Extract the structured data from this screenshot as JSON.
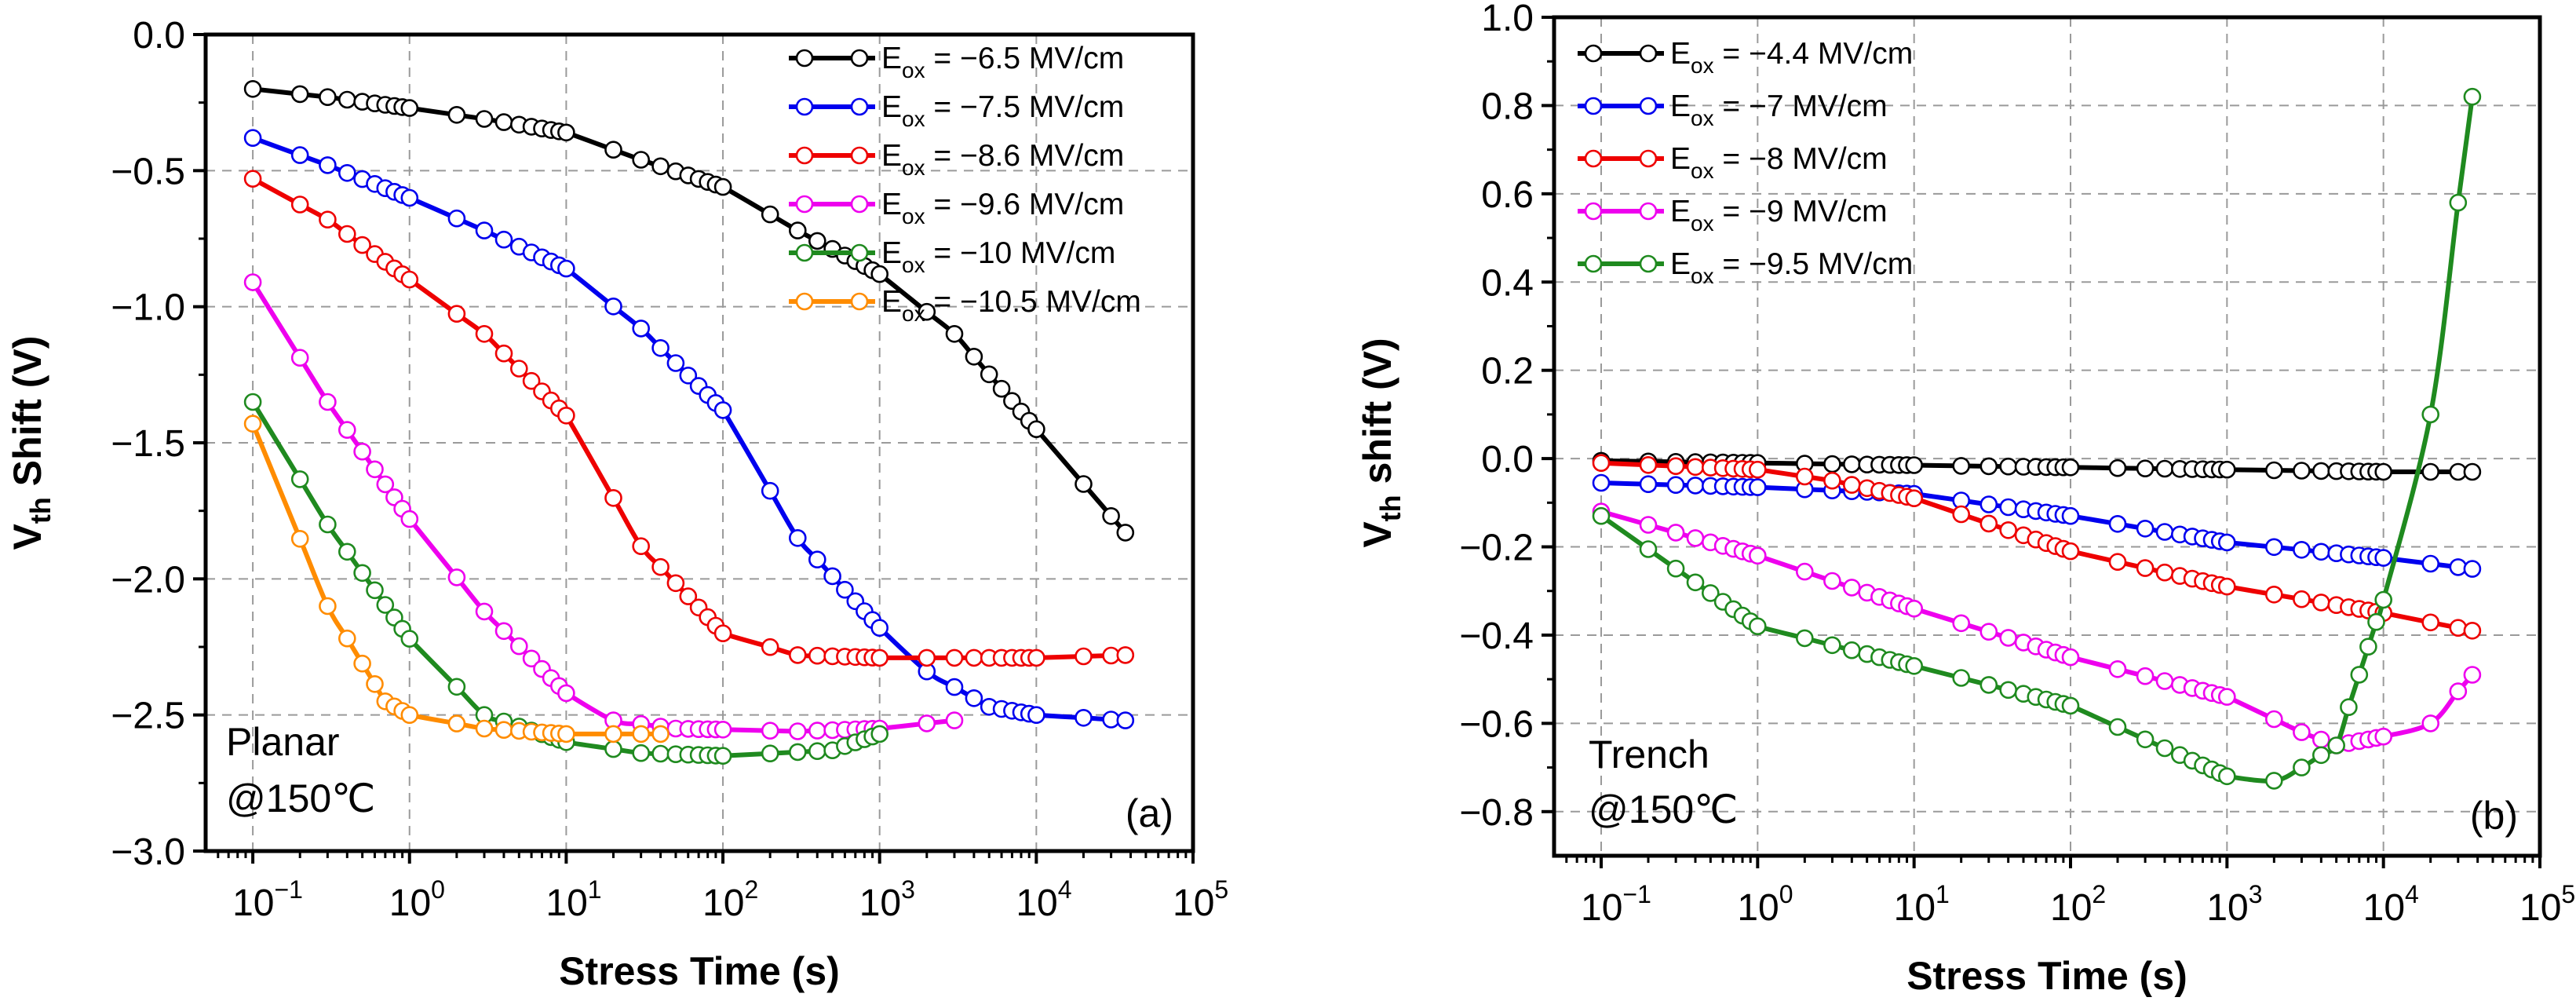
{
  "chart_data": [
    {
      "type": "line",
      "panel_label": "(a)",
      "annotation": [
        "Planar",
        "@150℃"
      ],
      "xlabel": "Stress Time (s)",
      "ylabel_main": "V",
      "ylabel_sub": "th",
      "ylabel_rest": " Shift (V)",
      "xscale": "log",
      "xlim": [
        0.05,
        100000
      ],
      "ylim": [
        -3.0,
        0.0
      ],
      "grid": true,
      "legend_position": "top-right",
      "x_ticks": [
        {
          "value": 0.1,
          "base": "10",
          "exp": "−1"
        },
        {
          "value": 1,
          "base": "10",
          "exp": "0"
        },
        {
          "value": 10,
          "base": "10",
          "exp": "1"
        },
        {
          "value": 100,
          "base": "10",
          "exp": "2"
        },
        {
          "value": 1000,
          "base": "10",
          "exp": "3"
        },
        {
          "value": 10000,
          "base": "10",
          "exp": "4"
        },
        {
          "value": 100000,
          "base": "10",
          "exp": "5"
        }
      ],
      "y_ticks": [
        {
          "value": 0.0,
          "label": "0.0"
        },
        {
          "value": -0.5,
          "label": "−0.5"
        },
        {
          "value": -1.0,
          "label": "−1.0"
        },
        {
          "value": -1.5,
          "label": "−1.5"
        },
        {
          "value": -2.0,
          "label": "−2.0"
        },
        {
          "value": -2.5,
          "label": "−2.5"
        },
        {
          "value": -3.0,
          "label": "−3.0"
        }
      ],
      "series": [
        {
          "name": "E",
          "sub": "ox",
          "value_label": " = −6.5 MV/cm",
          "color": "#000000",
          "anchors": [
            [
              0.1,
              -0.2
            ],
            [
              0.3,
              -0.23
            ],
            [
              1,
              -0.27
            ],
            [
              3,
              -0.31
            ],
            [
              10,
              -0.36
            ],
            [
              30,
              -0.46
            ],
            [
              100,
              -0.56
            ],
            [
              300,
              -0.72
            ],
            [
              1000,
              -0.88
            ],
            [
              3000,
              -1.1
            ],
            [
              10000,
              -1.45
            ],
            [
              37000,
              -1.83
            ]
          ]
        },
        {
          "name": "E",
          "sub": "ox",
          "value_label": " = −7.5 MV/cm",
          "color": "#0000ee",
          "anchors": [
            [
              0.1,
              -0.38
            ],
            [
              0.3,
              -0.48
            ],
            [
              1,
              -0.6
            ],
            [
              3,
              -0.72
            ],
            [
              10,
              -0.86
            ],
            [
              30,
              -1.08
            ],
            [
              100,
              -1.38
            ],
            [
              300,
              -1.85
            ],
            [
              1000,
              -2.18
            ],
            [
              2000,
              -2.34
            ],
            [
              5000,
              -2.47
            ],
            [
              10000,
              -2.5
            ],
            [
              37000,
              -2.52
            ]
          ]
        },
        {
          "name": "E",
          "sub": "ox",
          "value_label": " = −8.6 MV/cm",
          "color": "#ee0000",
          "anchors": [
            [
              0.1,
              -0.53
            ],
            [
              0.3,
              -0.68
            ],
            [
              1,
              -0.9
            ],
            [
              3,
              -1.1
            ],
            [
              10,
              -1.4
            ],
            [
              30,
              -1.88
            ],
            [
              100,
              -2.2
            ],
            [
              300,
              -2.28
            ],
            [
              1000,
              -2.29
            ],
            [
              10000,
              -2.29
            ],
            [
              37000,
              -2.28
            ]
          ]
        },
        {
          "name": "E",
          "sub": "ox",
          "value_label": " = −9.6 MV/cm",
          "color": "#ee00ee",
          "anchors": [
            [
              0.1,
              -0.91
            ],
            [
              0.3,
              -1.35
            ],
            [
              1,
              -1.78
            ],
            [
              3,
              -2.12
            ],
            [
              10,
              -2.42
            ],
            [
              20,
              -2.52
            ],
            [
              50,
              -2.55
            ],
            [
              300,
              -2.56
            ],
            [
              1000,
              -2.55
            ],
            [
              3000,
              -2.52
            ]
          ]
        },
        {
          "name": "E",
          "sub": "ox",
          "value_label": " = −10 MV/cm",
          "color": "#1f8a1f",
          "anchors": [
            [
              0.1,
              -1.35
            ],
            [
              0.3,
              -1.8
            ],
            [
              1,
              -2.22
            ],
            [
              3,
              -2.5
            ],
            [
              10,
              -2.6
            ],
            [
              30,
              -2.64
            ],
            [
              100,
              -2.65
            ],
            [
              500,
              -2.63
            ],
            [
              1000,
              -2.57
            ]
          ]
        },
        {
          "name": "E",
          "sub": "ox",
          "value_label": " = −10.5 MV/cm",
          "color": "#ff8c00",
          "anchors": [
            [
              0.1,
              -1.43
            ],
            [
              0.3,
              -2.1
            ],
            [
              0.7,
              -2.45
            ],
            [
              1,
              -2.5
            ],
            [
              3,
              -2.55
            ],
            [
              10,
              -2.57
            ],
            [
              40,
              -2.57
            ]
          ]
        }
      ]
    },
    {
      "type": "line",
      "panel_label": "(b)",
      "annotation": [
        "Trench",
        "@150℃"
      ],
      "xlabel": "Stress Time (s)",
      "ylabel_main": "V",
      "ylabel_sub": "th",
      "ylabel_rest": " shift (V)",
      "xscale": "log",
      "xlim": [
        0.05,
        100000
      ],
      "ylim": [
        -0.9,
        1.0
      ],
      "grid": true,
      "legend_position": "top-left",
      "x_ticks": [
        {
          "value": 0.1,
          "base": "10",
          "exp": "−1"
        },
        {
          "value": 1,
          "base": "10",
          "exp": "0"
        },
        {
          "value": 10,
          "base": "10",
          "exp": "1"
        },
        {
          "value": 100,
          "base": "10",
          "exp": "2"
        },
        {
          "value": 1000,
          "base": "10",
          "exp": "3"
        },
        {
          "value": 10000,
          "base": "10",
          "exp": "4"
        },
        {
          "value": 100000,
          "base": "10",
          "exp": "5"
        }
      ],
      "y_ticks": [
        {
          "value": 1.0,
          "label": "1.0"
        },
        {
          "value": 0.8,
          "label": "0.8"
        },
        {
          "value": 0.6,
          "label": "0.6"
        },
        {
          "value": 0.4,
          "label": "0.4"
        },
        {
          "value": 0.2,
          "label": "0.2"
        },
        {
          "value": 0.0,
          "label": "0.0"
        },
        {
          "value": -0.2,
          "label": "−0.2"
        },
        {
          "value": -0.4,
          "label": "−0.4"
        },
        {
          "value": -0.6,
          "label": "−0.6"
        },
        {
          "value": -0.8,
          "label": "−0.8"
        }
      ],
      "series": [
        {
          "name": "E",
          "sub": "ox",
          "value_label": " = −4.4 MV/cm",
          "color": "#000000",
          "anchors": [
            [
              0.1,
              -0.005
            ],
            [
              1,
              -0.01
            ],
            [
              10,
              -0.015
            ],
            [
              100,
              -0.02
            ],
            [
              1000,
              -0.025
            ],
            [
              10000,
              -0.03
            ],
            [
              37000,
              -0.03
            ]
          ]
        },
        {
          "name": "E",
          "sub": "ox",
          "value_label": " = −7 MV/cm",
          "color": "#0000ee",
          "anchors": [
            [
              0.1,
              -0.055
            ],
            [
              1,
              -0.065
            ],
            [
              10,
              -0.08
            ],
            [
              100,
              -0.13
            ],
            [
              1000,
              -0.19
            ],
            [
              10000,
              -0.225
            ],
            [
              37000,
              -0.25
            ]
          ]
        },
        {
          "name": "E",
          "sub": "ox",
          "value_label": " = −8 MV/cm",
          "color": "#ee0000",
          "anchors": [
            [
              0.1,
              -0.01
            ],
            [
              1,
              -0.025
            ],
            [
              3,
              -0.05
            ],
            [
              10,
              -0.09
            ],
            [
              100,
              -0.21
            ],
            [
              1000,
              -0.29
            ],
            [
              10000,
              -0.35
            ],
            [
              37000,
              -0.39
            ]
          ]
        },
        {
          "name": "E",
          "sub": "ox",
          "value_label": " = −9 MV/cm",
          "color": "#ee00ee",
          "anchors": [
            [
              0.1,
              -0.12
            ],
            [
              1,
              -0.22
            ],
            [
              10,
              -0.34
            ],
            [
              100,
              -0.45
            ],
            [
              1000,
              -0.54
            ],
            [
              3000,
              -0.62
            ],
            [
              5000,
              -0.65
            ],
            [
              10000,
              -0.63
            ],
            [
              20000,
              -0.6
            ],
            [
              37000,
              -0.49
            ]
          ]
        },
        {
          "name": "E",
          "sub": "ox",
          "value_label": " = −9.5 MV/cm",
          "color": "#1f8a1f",
          "anchors": [
            [
              0.1,
              -0.13
            ],
            [
              1,
              -0.38
            ],
            [
              10,
              -0.47
            ],
            [
              100,
              -0.56
            ],
            [
              1000,
              -0.72
            ],
            [
              2000,
              -0.73
            ],
            [
              3000,
              -0.7
            ],
            [
              5000,
              -0.65
            ],
            [
              10000,
              -0.32
            ],
            [
              20000,
              0.1
            ],
            [
              30000,
              0.58
            ],
            [
              37000,
              0.82
            ]
          ]
        }
      ]
    }
  ]
}
